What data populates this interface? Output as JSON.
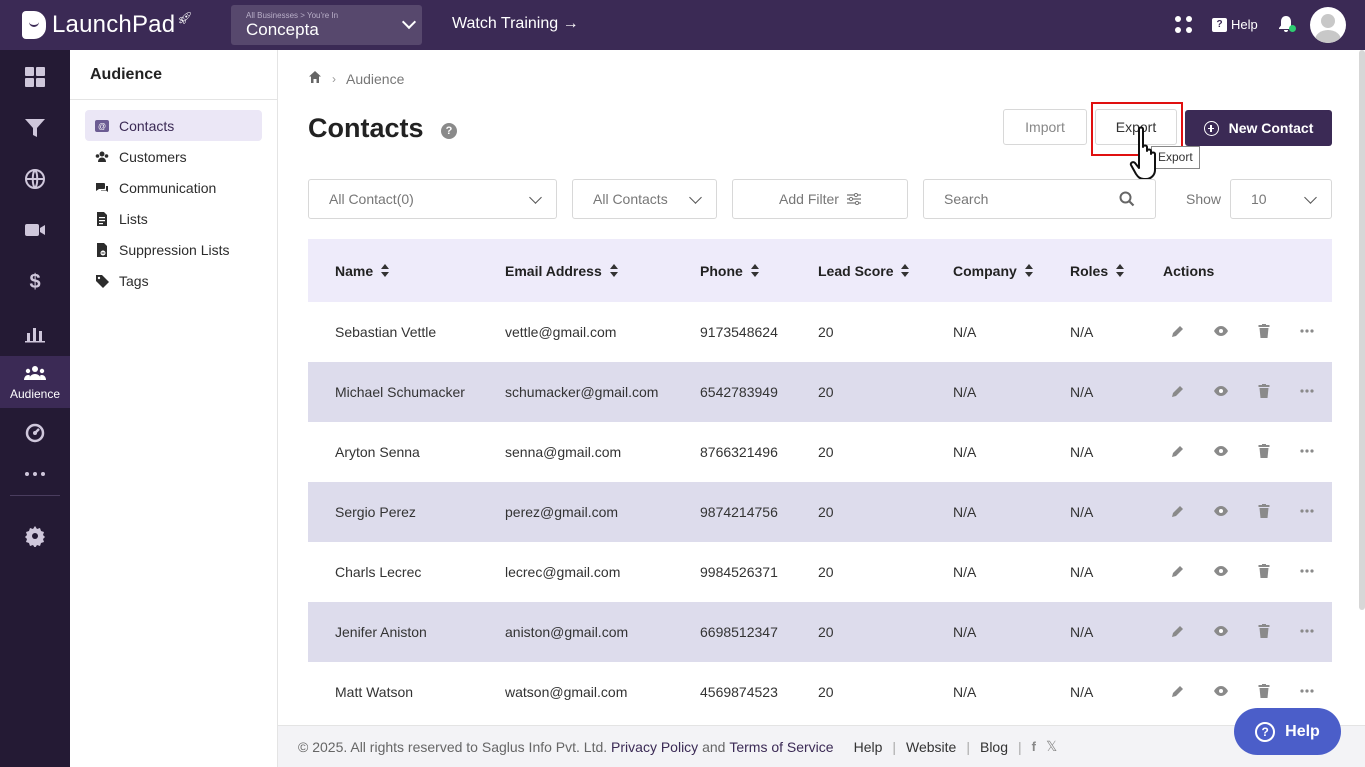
{
  "app": {
    "logo_text": "LaunchPad",
    "business_caption": "All Businesses > You're In",
    "business_name": "Concepta",
    "watch_training": "Watch Training →",
    "help_label": "Help"
  },
  "rail": {
    "active_label": "Audience",
    "items": [
      "dashboard-icon",
      "funnel-icon",
      "globe-icon",
      "video-icon",
      "dollar-icon",
      "analytics-icon",
      "audience-icon",
      "automation-icon",
      "more-icon",
      "settings-icon"
    ]
  },
  "sidebar": {
    "title": "Audience",
    "items": [
      {
        "label": "Contacts",
        "icon": "contacts-icon"
      },
      {
        "label": "Customers",
        "icon": "customers-icon"
      },
      {
        "label": "Communication",
        "icon": "communication-icon"
      },
      {
        "label": "Lists",
        "icon": "lists-icon"
      },
      {
        "label": "Suppression Lists",
        "icon": "suppression-icon"
      },
      {
        "label": "Tags",
        "icon": "tag-icon"
      }
    ]
  },
  "breadcrumb": {
    "current": "Audience"
  },
  "page": {
    "title": "Contacts",
    "import_label": "Import",
    "export_label": "Export",
    "new_contact_label": "New Contact",
    "tooltip": "Export"
  },
  "filters": {
    "contact_filter": "All Contact(0)",
    "contact_type": "All Contacts",
    "add_filter": "Add Filter",
    "search_placeholder": "Search",
    "show_label": "Show",
    "show_value": "10"
  },
  "table": {
    "columns": [
      "Name",
      "Email Address",
      "Phone",
      "Lead Score",
      "Company",
      "Roles",
      "Actions"
    ],
    "rows": [
      {
        "name": "Sebastian Vettle",
        "email": "vettle@gmail.com",
        "phone": "9173548624",
        "lead": "20",
        "company": "N/A",
        "roles": "N/A"
      },
      {
        "name": "Michael Schumacker",
        "email": "schumacker@gmail.com",
        "phone": "6542783949",
        "lead": "20",
        "company": "N/A",
        "roles": "N/A"
      },
      {
        "name": "Aryton Senna",
        "email": "senna@gmail.com",
        "phone": "8766321496",
        "lead": "20",
        "company": "N/A",
        "roles": "N/A"
      },
      {
        "name": "Sergio Perez",
        "email": "perez@gmail.com",
        "phone": "9874214756",
        "lead": "20",
        "company": "N/A",
        "roles": "N/A"
      },
      {
        "name": "Charls Lecrec",
        "email": "lecrec@gmail.com",
        "phone": "9984526371",
        "lead": "20",
        "company": "N/A",
        "roles": "N/A"
      },
      {
        "name": "Jenifer Aniston",
        "email": "aniston@gmail.com",
        "phone": "6698512347",
        "lead": "20",
        "company": "N/A",
        "roles": "N/A"
      },
      {
        "name": "Matt Watson",
        "email": "watson@gmail.com",
        "phone": "4569874523",
        "lead": "20",
        "company": "N/A",
        "roles": "N/A"
      }
    ]
  },
  "footer": {
    "copyright": "© 2025. All rights reserved to Saglus Info Pvt. Ltd.",
    "privacy": "Privacy Policy",
    "and": "and",
    "terms": "Terms of Service",
    "help": "Help",
    "website": "Website",
    "blog": "Blog"
  },
  "help_float": "Help",
  "colors": {
    "brand": "#3b2a55",
    "rail": "#241a34",
    "row_alt": "#dddcec",
    "header_row": "#eeebfa",
    "help_button": "#4b5ec9"
  }
}
